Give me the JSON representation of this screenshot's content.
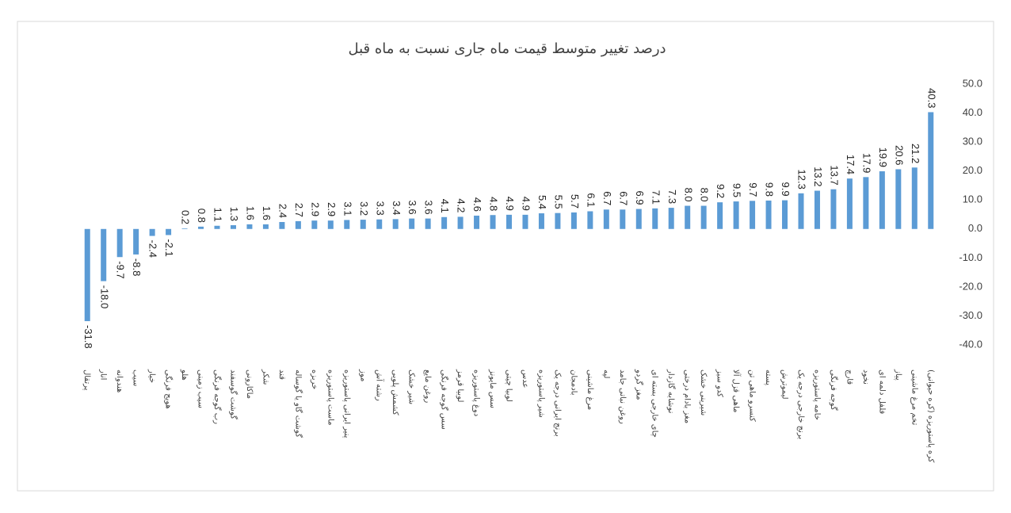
{
  "chart_data": {
    "type": "bar",
    "title": "درصد تغییر متوسط قیمت ماه جاری نسبت به ماه قبل",
    "categories": [
      "پرتقال",
      "انار",
      "هندوانه",
      "سیب",
      "خیار",
      "هویج فرنگی",
      "هلو",
      "سیب زمینی",
      "رب گوجه فرنگی",
      "گوشت گوسفند",
      "ماکارونی",
      "شکر",
      "قند",
      "گوشت گاو یا گوساله",
      "خربزه",
      "ماست پاستوریزه",
      "پنیر ایرانی پاستوریزه",
      "موز",
      "رشته آش",
      "کشمش پلویی",
      "شیر خشک",
      "روغن مایع",
      "سس گوجه فرنگی",
      "لوبیا قرمز",
      "دوغ پاستوریزه",
      "سس مایونز",
      "لوبیا چیتی",
      "عدس",
      "شیر پاستوریزه",
      "برنج ایرانی درجه یک",
      "بادمجان",
      "مرغ ماشینی",
      "لپه",
      "روغن نباتی جامد",
      "مغز گردو",
      "چای خارجی بسته ای",
      "نوشابه گازدار",
      "مغز بادام درختی",
      "شیرینی خشک",
      "کدو سبز",
      "ماهی قزل آلا",
      "کنسرو ماهی تن",
      "پسته",
      "لیموترش",
      "برنج خارجی درجه یک",
      "خامه پاستوریزه",
      "گوجه فرنگی",
      "قارچ",
      "نخود",
      "فلفل دلمه ای",
      "پیاز",
      "تخم مرغ ماشینی",
      "کره پاستوریزه (کره حیوانی)"
    ],
    "values": [
      -31.8,
      -18.0,
      -9.7,
      -8.8,
      -2.4,
      -2.1,
      0.2,
      0.8,
      1.1,
      1.3,
      1.6,
      1.6,
      2.4,
      2.7,
      2.9,
      2.9,
      3.1,
      3.2,
      3.3,
      3.4,
      3.6,
      3.6,
      4.1,
      4.2,
      4.6,
      4.8,
      4.9,
      4.9,
      5.4,
      5.5,
      5.7,
      6.1,
      6.7,
      6.7,
      6.9,
      7.1,
      7.3,
      8.0,
      8.0,
      9.2,
      9.5,
      9.7,
      9.8,
      9.9,
      12.3,
      13.2,
      13.7,
      17.4,
      17.9,
      19.9,
      20.6,
      21.2,
      40.3
    ],
    "value_labels": [
      "-31.8",
      "-18.0",
      "-9.7",
      "-8.8",
      "-2.4",
      "-2.1",
      "0.2",
      "0.8",
      "1.1",
      "1.3",
      "1.6",
      "1.6",
      "2.4",
      "2.7",
      "2.9",
      "2.9",
      "3.1",
      "3.2",
      "3.3",
      "3.4",
      "3.6",
      "3.6",
      "4.1",
      "4.2",
      "4.6",
      "4.8",
      "4.9",
      "4.9",
      "5.4",
      "5.5",
      "5.7",
      "6.1",
      "6.7",
      "6.7",
      "6.9",
      "7.1",
      "7.3",
      "8.0",
      "8.0",
      "9.2",
      "9.5",
      "9.7",
      "9.8",
      "9.9",
      "12.3",
      "13.2",
      "13.7",
      "17.4",
      "17.9",
      "19.9",
      "20.6",
      "21.2",
      "40.3"
    ],
    "color": "#5b9bd5",
    "ylim": [
      -40,
      50
    ],
    "yticks": [
      {
        "value": 50,
        "label": "50.0"
      },
      {
        "value": 40,
        "label": "40.0"
      },
      {
        "value": 30,
        "label": "30.0"
      },
      {
        "value": 20,
        "label": "20.0"
      },
      {
        "value": 10,
        "label": "10.0"
      },
      {
        "value": 0,
        "label": "0.0"
      },
      {
        "value": -10,
        "label": "-10.0"
      },
      {
        "value": -20,
        "label": "-20.0"
      },
      {
        "value": -30,
        "label": "-30.0"
      },
      {
        "value": -40,
        "label": "-40.0"
      }
    ],
    "grid": false
  }
}
